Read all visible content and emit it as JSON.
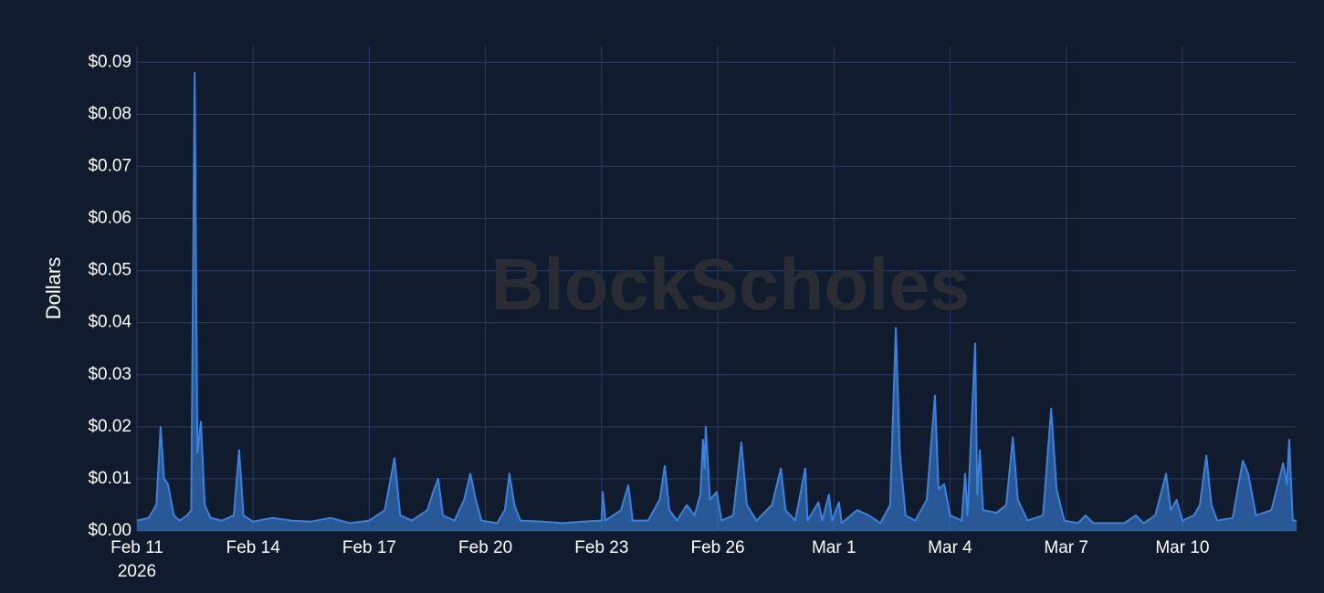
{
  "chart_data": {
    "type": "area",
    "y_label": "Dollars",
    "watermark": "BlockScholes",
    "color": "#3a82dd",
    "x": [
      0,
      0.3,
      0.5,
      0.61,
      0.7,
      0.8,
      0.95,
      1.1,
      1.3,
      1.4,
      1.49,
      1.56,
      1.65,
      1.75,
      1.9,
      2.2,
      2.5,
      2.64,
      2.75,
      3.0,
      3.5,
      4.0,
      4.5,
      5.0,
      5.5,
      6.0,
      6.4,
      6.65,
      6.8,
      7.1,
      7.5,
      7.65,
      7.78,
      7.9,
      8.2,
      8.45,
      8.61,
      8.75,
      8.9,
      9.3,
      9.5,
      9.62,
      9.75,
      9.9,
      10.5,
      11.0,
      11.5,
      12.0,
      12.03,
      12.1,
      12.5,
      12.69,
      12.8,
      13.2,
      13.5,
      13.63,
      13.75,
      13.95,
      14.2,
      14.4,
      14.55,
      14.62,
      14.66,
      14.69,
      14.8,
      14.97,
      15.1,
      15.4,
      15.61,
      15.75,
      16.0,
      16.4,
      16.63,
      16.75,
      17.0,
      17.26,
      17.32,
      17.6,
      17.7,
      17.87,
      17.95,
      18.13,
      18.2,
      18.6,
      18.9,
      19.2,
      19.45,
      19.6,
      19.7,
      19.85,
      20.1,
      20.4,
      20.61,
      20.7,
      20.85,
      21.0,
      21.3,
      21.39,
      21.45,
      21.65,
      21.7,
      21.77,
      21.85,
      22.2,
      22.45,
      22.62,
      22.75,
      23.0,
      23.4,
      23.61,
      23.75,
      23.95,
      24.3,
      24.5,
      24.7,
      25.0,
      25.5,
      25.8,
      26.0,
      26.3,
      26.58,
      26.7,
      26.85,
      27.0,
      27.3,
      27.45,
      27.62,
      27.75,
      27.9,
      28.3,
      28.56,
      28.7,
      28.9,
      29.3,
      29.6,
      29.7,
      29.76,
      29.85,
      29.95
    ],
    "values": [
      0.002,
      0.0025,
      0.005,
      0.02,
      0.01,
      0.009,
      0.003,
      0.002,
      0.003,
      0.004,
      0.088,
      0.015,
      0.021,
      0.005,
      0.0025,
      0.002,
      0.003,
      0.0155,
      0.003,
      0.0018,
      0.0025,
      0.002,
      0.0018,
      0.0025,
      0.0015,
      0.002,
      0.004,
      0.014,
      0.003,
      0.002,
      0.004,
      0.0075,
      0.01,
      0.003,
      0.002,
      0.006,
      0.011,
      0.006,
      0.002,
      0.0015,
      0.004,
      0.011,
      0.005,
      0.002,
      0.0018,
      0.0015,
      0.0018,
      0.002,
      0.0075,
      0.002,
      0.004,
      0.0088,
      0.002,
      0.002,
      0.006,
      0.0125,
      0.004,
      0.002,
      0.005,
      0.003,
      0.007,
      0.0175,
      0.012,
      0.02,
      0.006,
      0.0075,
      0.002,
      0.003,
      0.017,
      0.005,
      0.002,
      0.005,
      0.012,
      0.004,
      0.002,
      0.012,
      0.002,
      0.0055,
      0.002,
      0.007,
      0.002,
      0.0055,
      0.0015,
      0.004,
      0.003,
      0.0015,
      0.005,
      0.039,
      0.015,
      0.003,
      0.002,
      0.006,
      0.026,
      0.008,
      0.009,
      0.003,
      0.002,
      0.011,
      0.003,
      0.036,
      0.007,
      0.0155,
      0.004,
      0.0035,
      0.005,
      0.018,
      0.006,
      0.002,
      0.003,
      0.0235,
      0.008,
      0.002,
      0.0015,
      0.003,
      0.0015,
      0.0015,
      0.0015,
      0.003,
      0.0015,
      0.003,
      0.011,
      0.004,
      0.006,
      0.002,
      0.003,
      0.005,
      0.0145,
      0.005,
      0.002,
      0.0025,
      0.0135,
      0.011,
      0.003,
      0.004,
      0.013,
      0.009,
      0.0175,
      0.002,
      0.002
    ],
    "xlim": [
      0,
      29.95
    ],
    "ylim": [
      0,
      0.0932
    ],
    "xticks": [
      {
        "value": 0,
        "label": "Feb 11\n2026"
      },
      {
        "value": 3,
        "label": "Feb 14"
      },
      {
        "value": 6,
        "label": "Feb 17"
      },
      {
        "value": 9,
        "label": "Feb 20"
      },
      {
        "value": 12,
        "label": "Feb 23"
      },
      {
        "value": 15,
        "label": "Feb 26"
      },
      {
        "value": 18,
        "label": "Mar 1"
      },
      {
        "value": 21,
        "label": "Mar 4"
      },
      {
        "value": 24,
        "label": "Mar 7"
      },
      {
        "value": 27,
        "label": "Mar 10"
      }
    ],
    "yticks": [
      {
        "value": 0,
        "label": "$0.00"
      },
      {
        "value": 0.01,
        "label": "$0.01"
      },
      {
        "value": 0.02,
        "label": "$0.02"
      },
      {
        "value": 0.03,
        "label": "$0.03"
      },
      {
        "value": 0.04,
        "label": "$0.04"
      },
      {
        "value": 0.05,
        "label": "$0.05"
      },
      {
        "value": 0.06,
        "label": "$0.06"
      },
      {
        "value": 0.07,
        "label": "$0.07"
      },
      {
        "value": 0.08,
        "label": "$0.08"
      },
      {
        "value": 0.09,
        "label": "$0.09"
      }
    ],
    "grid": true
  }
}
